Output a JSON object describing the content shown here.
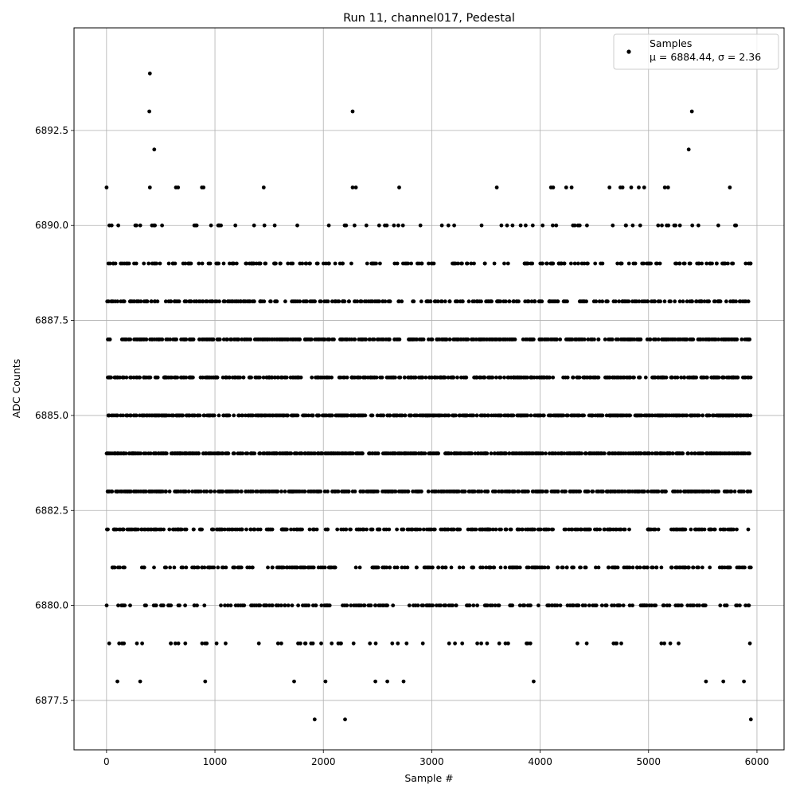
{
  "chart_data": {
    "type": "scatter",
    "title": "Run 11, channel017, Pedestal",
    "xlabel": "Sample #",
    "ylabel": "ADC Counts",
    "xlim": [
      -300,
      6250
    ],
    "ylim": [
      6876.2,
      6895.2
    ],
    "xticks": [
      0,
      1000,
      2000,
      3000,
      4000,
      5000,
      6000
    ],
    "yticks": [
      6877.5,
      6880.0,
      6882.5,
      6885.0,
      6887.5,
      6890.0,
      6892.5
    ],
    "xtick_labels": [
      "0",
      "1000",
      "2000",
      "3000",
      "4000",
      "5000",
      "6000"
    ],
    "ytick_labels": [
      "6877.5",
      "6880.0",
      "6882.5",
      "6885.0",
      "6887.5",
      "6890.0",
      "6892.5"
    ],
    "grid": true,
    "marker_color": "#000000",
    "grid_color": "#b0b0b0",
    "legend": {
      "placement": "top-right",
      "series_name": "Samples",
      "stats_line": "μ = 6884.44, σ = 2.36"
    },
    "series": [
      {
        "name": "Samples",
        "x_range": [
          0,
          5944
        ],
        "points": [
          {
            "x": 0,
            "y": 6891
          },
          {
            "x": 400,
            "y": 6891
          },
          {
            "x": 640,
            "y": 6891
          },
          {
            "x": 660,
            "y": 6891
          },
          {
            "x": 880,
            "y": 6891
          },
          {
            "x": 895,
            "y": 6891
          },
          {
            "x": 1450,
            "y": 6891
          },
          {
            "x": 2270,
            "y": 6891
          },
          {
            "x": 2300,
            "y": 6891
          },
          {
            "x": 2700,
            "y": 6891
          },
          {
            "x": 3600,
            "y": 6891
          },
          {
            "x": 4100,
            "y": 6891
          },
          {
            "x": 4120,
            "y": 6891
          },
          {
            "x": 4240,
            "y": 6891
          },
          {
            "x": 4290,
            "y": 6891
          },
          {
            "x": 4640,
            "y": 6891
          },
          {
            "x": 4740,
            "y": 6891
          },
          {
            "x": 4760,
            "y": 6891
          },
          {
            "x": 4840,
            "y": 6891
          },
          {
            "x": 4910,
            "y": 6891
          },
          {
            "x": 4960,
            "y": 6891
          },
          {
            "x": 5150,
            "y": 6891
          },
          {
            "x": 5180,
            "y": 6891
          },
          {
            "x": 5750,
            "y": 6891
          },
          {
            "x": 400,
            "y": 6894
          },
          {
            "x": 395,
            "y": 6893
          },
          {
            "x": 2270,
            "y": 6893
          },
          {
            "x": 5400,
            "y": 6893
          },
          {
            "x": 440,
            "y": 6892
          },
          {
            "x": 5370,
            "y": 6892
          },
          {
            "x": 1920,
            "y": 6877
          },
          {
            "x": 2200,
            "y": 6877
          },
          {
            "x": 5944,
            "y": 6877
          },
          {
            "x": 100,
            "y": 6878
          },
          {
            "x": 310,
            "y": 6878
          },
          {
            "x": 910,
            "y": 6878
          },
          {
            "x": 1730,
            "y": 6878
          },
          {
            "x": 2020,
            "y": 6878
          },
          {
            "x": 2480,
            "y": 6878
          },
          {
            "x": 2590,
            "y": 6878
          },
          {
            "x": 2740,
            "y": 6878
          },
          {
            "x": 3940,
            "y": 6878
          },
          {
            "x": 5530,
            "y": 6878
          },
          {
            "x": 5690,
            "y": 6878
          },
          {
            "x": 5880,
            "y": 6878
          }
        ],
        "dense_levels": [
          {
            "y": 6879,
            "n": 60
          },
          {
            "y": 6880,
            "n": 230
          },
          {
            "y": 6881,
            "n": 250
          },
          {
            "y": 6882,
            "n": 330
          },
          {
            "y": 6883,
            "n": 520
          },
          {
            "y": 6884,
            "n": 620
          },
          {
            "y": 6885,
            "n": 600
          },
          {
            "y": 6886,
            "n": 430
          },
          {
            "y": 6887,
            "n": 520
          },
          {
            "y": 6888,
            "n": 330
          },
          {
            "y": 6889,
            "n": 200
          },
          {
            "y": 6890,
            "n": 70
          }
        ]
      }
    ]
  }
}
